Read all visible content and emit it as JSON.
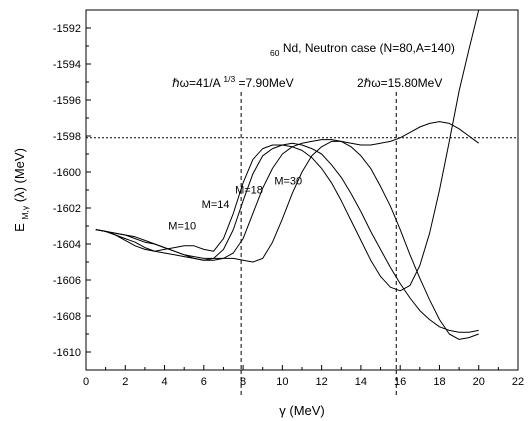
{
  "chart_data": {
    "type": "line",
    "title": {
      "sub": "60",
      "main": "Nd,  Neutron case (N=80,A=140)"
    },
    "xlabel": "γ (MeV)",
    "ylabel": {
      "main": "E",
      "sub": "M,γ",
      "rest": " (λ) (MeV)"
    },
    "xlim": [
      0,
      22
    ],
    "ylim": [
      -1611,
      -1591
    ],
    "xticks": [
      0,
      2,
      4,
      6,
      8,
      10,
      12,
      14,
      16,
      18,
      20,
      22
    ],
    "yticks": [
      -1592,
      -1594,
      -1596,
      -1598,
      -1600,
      -1602,
      -1604,
      -1606,
      -1608,
      -1610
    ],
    "annotations": {
      "hw1": {
        "pre": "ℏω=41/A",
        "sup": "1/3",
        "post": "=7.90MeV",
        "x": 7.9
      },
      "hw2": {
        "pre": "2ℏω=15.80MeV",
        "x": 15.8
      }
    },
    "reference_lines": {
      "vertical_x": [
        7.9,
        15.8
      ],
      "horizontal_y": -1598.1
    },
    "series": [
      {
        "name": "M=10",
        "x": [
          0.5,
          1,
          1.5,
          2,
          2.5,
          3,
          3.5,
          4,
          4.5,
          5,
          5.5,
          6,
          6.5,
          7,
          7.5,
          8,
          8.5,
          9,
          9.5,
          10,
          10.5,
          11,
          11.5,
          12,
          12.5,
          13,
          13.5,
          14,
          14.5,
          15,
          15.5,
          16,
          16.5,
          17,
          17.5,
          18,
          18.5,
          19,
          19.5,
          20
        ],
        "y": [
          -1603.2,
          -1603.3,
          -1603.5,
          -1603.8,
          -1604.1,
          -1604.3,
          -1604.4,
          -1604.3,
          -1604.2,
          -1604.1,
          -1604.1,
          -1604.3,
          -1604.4,
          -1603.7,
          -1602.3,
          -1600.6,
          -1599.3,
          -1598.7,
          -1598.5,
          -1598.5,
          -1598.6,
          -1598.8,
          -1599.2,
          -1599.8,
          -1600.6,
          -1601.6,
          -1602.7,
          -1603.8,
          -1604.9,
          -1605.8,
          -1606.4,
          -1606.6,
          -1606.3,
          -1605.2,
          -1603.4,
          -1601.0,
          -1598.3,
          -1595.5,
          -1593.2,
          -1591.0
        ]
      },
      {
        "name": "M=14",
        "x": [
          0.5,
          1,
          1.5,
          2,
          2.5,
          3,
          3.5,
          4,
          4.5,
          5,
          5.5,
          6,
          6.5,
          7,
          7.5,
          8,
          8.5,
          9,
          9.5,
          10,
          10.5,
          11,
          11.5,
          12,
          12.5,
          13,
          13.5,
          14,
          14.5,
          15,
          15.5,
          16,
          16.5,
          17,
          17.5,
          18,
          18.5,
          19,
          19.5,
          20
        ],
        "y": [
          -1603.2,
          -1603.3,
          -1603.5,
          -1603.7,
          -1603.9,
          -1604.2,
          -1604.4,
          -1604.5,
          -1604.6,
          -1604.7,
          -1604.8,
          -1604.9,
          -1604.8,
          -1604.3,
          -1603.2,
          -1601.6,
          -1600.1,
          -1599.1,
          -1598.7,
          -1598.5,
          -1598.4,
          -1598.5,
          -1598.7,
          -1599.0,
          -1599.6,
          -1600.3,
          -1601.2,
          -1602.2,
          -1603.3,
          -1604.3,
          -1605.3,
          -1606.2,
          -1607.0,
          -1607.7,
          -1608.2,
          -1608.6,
          -1608.8,
          -1608.9,
          -1608.9,
          -1608.8
        ]
      },
      {
        "name": "M=18",
        "x": [
          0.5,
          1,
          1.5,
          2,
          2.5,
          3,
          3.5,
          4,
          4.5,
          5,
          5.5,
          6,
          6.5,
          7,
          7.5,
          8,
          8.5,
          9,
          9.5,
          10,
          10.5,
          11,
          11.5,
          12,
          12.5,
          13,
          13.5,
          14,
          14.5,
          15,
          15.5,
          16,
          16.5,
          17,
          17.5,
          18,
          18.5,
          19,
          19.5,
          20
        ],
        "y": [
          -1603.2,
          -1603.3,
          -1603.4,
          -1603.5,
          -1603.7,
          -1603.9,
          -1604.0,
          -1604.2,
          -1604.4,
          -1604.6,
          -1604.8,
          -1604.9,
          -1604.9,
          -1604.8,
          -1604.5,
          -1603.7,
          -1602.3,
          -1600.9,
          -1599.8,
          -1599.0,
          -1598.6,
          -1598.4,
          -1598.3,
          -1598.2,
          -1598.2,
          -1598.3,
          -1598.6,
          -1599.1,
          -1599.8,
          -1600.8,
          -1601.9,
          -1603.2,
          -1604.6,
          -1605.9,
          -1607.1,
          -1608.2,
          -1609.0,
          -1609.3,
          -1609.2,
          -1609.0
        ]
      },
      {
        "name": "M=30",
        "x": [
          0.5,
          1,
          1.5,
          2,
          2.5,
          3,
          3.5,
          4,
          4.5,
          5,
          5.5,
          6,
          6.5,
          7,
          7.5,
          8,
          8.5,
          9,
          9.5,
          10,
          10.5,
          11,
          11.5,
          12,
          12.5,
          13,
          13.5,
          14,
          14.5,
          15,
          15.5,
          16,
          16.5,
          17,
          17.5,
          18,
          18.5,
          19,
          19.5,
          20
        ],
        "y": [
          -1603.2,
          -1603.3,
          -1603.4,
          -1603.5,
          -1603.6,
          -1603.8,
          -1604.0,
          -1604.2,
          -1604.4,
          -1604.6,
          -1604.7,
          -1604.8,
          -1604.8,
          -1604.8,
          -1604.8,
          -1604.9,
          -1605.0,
          -1604.8,
          -1603.9,
          -1602.6,
          -1601.2,
          -1600.0,
          -1599.1,
          -1598.6,
          -1598.3,
          -1598.3,
          -1598.4,
          -1598.5,
          -1598.5,
          -1598.4,
          -1598.3,
          -1598.1,
          -1597.8,
          -1597.5,
          -1597.3,
          -1597.2,
          -1597.3,
          -1597.6,
          -1598.0,
          -1598.4
        ]
      }
    ],
    "curve_labels": [
      {
        "text": "M=10",
        "x": 4.9,
        "y": -1603.2
      },
      {
        "text": "M=14",
        "x": 6.6,
        "y": -1602.0
      },
      {
        "text": "M=18",
        "x": 8.3,
        "y": -1601.2
      },
      {
        "text": "M=30",
        "x": 10.3,
        "y": -1600.7
      }
    ]
  }
}
